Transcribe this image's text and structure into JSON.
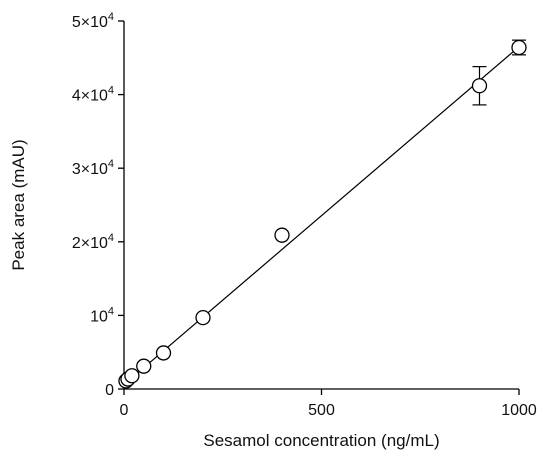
{
  "chart_data": {
    "type": "scatter",
    "xlabel": "Sesamol concentration (ng/mL)",
    "ylabel": "Peak area (mAU)",
    "xlim": [
      0,
      1000
    ],
    "ylim": [
      0,
      50000
    ],
    "grid": false,
    "x_ticks": [
      {
        "value": 0,
        "label": "0"
      },
      {
        "value": 500,
        "label": "500"
      },
      {
        "value": 1000,
        "label": "1000"
      }
    ],
    "y_ticks": [
      {
        "value": 0,
        "mantissa": "0",
        "exp": ""
      },
      {
        "value": 10000,
        "mantissa": "10",
        "exp": "4"
      },
      {
        "value": 20000,
        "mantissa": "2×10",
        "exp": "4"
      },
      {
        "value": 30000,
        "mantissa": "3×10",
        "exp": "4"
      },
      {
        "value": 40000,
        "mantissa": "4×10",
        "exp": "4"
      },
      {
        "value": 50000,
        "mantissa": "5×10",
        "exp": "4"
      }
    ],
    "series": [
      {
        "x": [
          5,
          10,
          20,
          50,
          100,
          200,
          400,
          900,
          1000
        ],
        "y": [
          1100,
          1350,
          1800,
          3100,
          4900,
          9700,
          20900,
          41200,
          46400
        ],
        "error": [
          0,
          0,
          0,
          0,
          0,
          0,
          0,
          2600,
          1000
        ]
      }
    ],
    "fit_line": {
      "x": [
        0,
        1000
      ],
      "y": [
        600,
        46500
      ]
    }
  }
}
